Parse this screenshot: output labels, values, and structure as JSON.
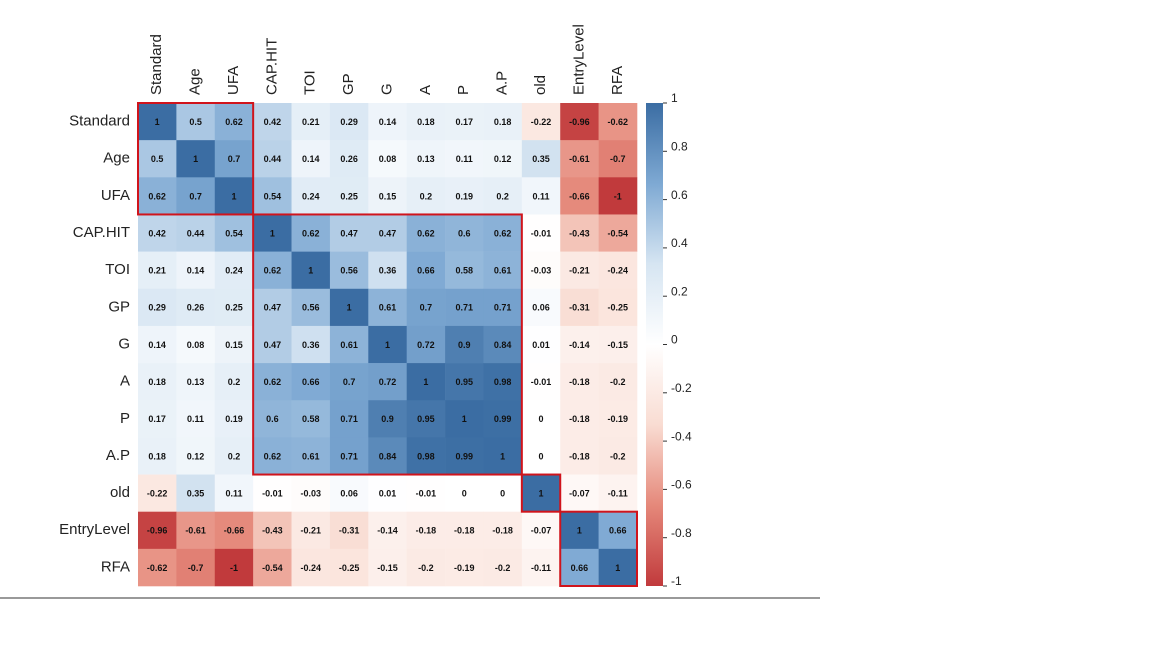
{
  "chart_data": {
    "type": "heatmap",
    "categories": [
      "Standard",
      "Age",
      "UFA",
      "CAP.HIT",
      "TOI",
      "GP",
      "G",
      "A",
      "P",
      "A.P",
      "old",
      "EntryLevel",
      "RFA"
    ],
    "values": [
      [
        1,
        0.5,
        0.62,
        0.42,
        0.21,
        0.29,
        0.14,
        0.18,
        0.17,
        0.18,
        -0.22,
        -0.96,
        -0.62
      ],
      [
        0.5,
        1,
        0.7,
        0.44,
        0.14,
        0.26,
        0.08,
        0.13,
        0.11,
        0.12,
        0.35,
        -0.61,
        -0.7
      ],
      [
        0.62,
        0.7,
        1,
        0.54,
        0.24,
        0.25,
        0.15,
        0.2,
        0.19,
        0.2,
        0.11,
        -0.66,
        -1
      ],
      [
        0.42,
        0.44,
        0.54,
        1,
        0.62,
        0.47,
        0.47,
        0.62,
        0.6,
        0.62,
        -0.01,
        -0.43,
        -0.54
      ],
      [
        0.21,
        0.14,
        0.24,
        0.62,
        1,
        0.56,
        0.36,
        0.66,
        0.58,
        0.61,
        -0.03,
        -0.21,
        -0.24
      ],
      [
        0.29,
        0.26,
        0.25,
        0.47,
        0.56,
        1,
        0.61,
        0.7,
        0.71,
        0.71,
        0.06,
        -0.31,
        -0.25
      ],
      [
        0.14,
        0.08,
        0.15,
        0.47,
        0.36,
        0.61,
        1,
        0.72,
        0.9,
        0.84,
        0.01,
        -0.14,
        -0.15
      ],
      [
        0.18,
        0.13,
        0.2,
        0.62,
        0.66,
        0.7,
        0.72,
        1,
        0.95,
        0.98,
        -0.01,
        -0.18,
        -0.2
      ],
      [
        0.17,
        0.11,
        0.19,
        0.6,
        0.58,
        0.71,
        0.9,
        0.95,
        1,
        0.99,
        0,
        -0.18,
        -0.19
      ],
      [
        0.18,
        0.12,
        0.2,
        0.62,
        0.61,
        0.71,
        0.84,
        0.98,
        0.99,
        1,
        0,
        -0.18,
        -0.2
      ],
      [
        -0.22,
        0.35,
        0.11,
        -0.01,
        -0.03,
        0.06,
        0.01,
        -0.01,
        0,
        0,
        1,
        -0.07,
        -0.11
      ],
      [
        -0.96,
        -0.61,
        -0.66,
        -0.43,
        -0.21,
        -0.31,
        -0.14,
        -0.18,
        -0.18,
        -0.18,
        -0.07,
        1,
        0.66
      ],
      [
        -0.62,
        -0.7,
        -1,
        -0.54,
        -0.24,
        -0.25,
        -0.15,
        -0.2,
        -0.19,
        -0.2,
        -0.11,
        0.66,
        1
      ]
    ],
    "colorscale": [
      "#c13a3c",
      "#e5887a",
      "#f9dcd2",
      "#ffffff",
      "#d6e5f2",
      "#7ea9d3",
      "#3b6da3"
    ],
    "zlim": [
      -1,
      1
    ],
    "zticks": [
      1,
      0.8,
      0.6,
      0.4,
      0.2,
      0,
      -0.2,
      -0.4,
      -0.6,
      -0.8,
      -1
    ]
  }
}
